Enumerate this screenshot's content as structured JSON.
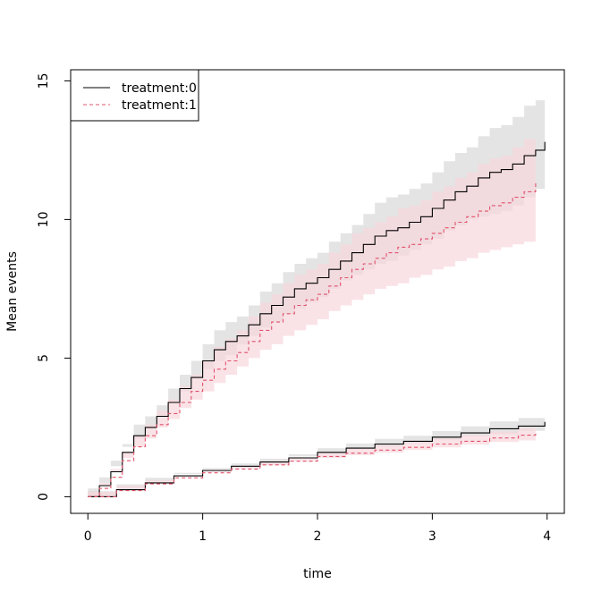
{
  "chart_data": {
    "type": "line",
    "title": "",
    "xlabel": "time",
    "ylabel": "Mean events",
    "xlim": [
      -0.15,
      4.15
    ],
    "ylim": [
      -0.6,
      15.4
    ],
    "xticks": [
      0,
      1,
      2,
      3,
      4
    ],
    "yticks": [
      0,
      5,
      10,
      15
    ],
    "grid": false,
    "legend": {
      "position": "top-left",
      "entries": [
        "treatment:0",
        "treatment:1"
      ]
    },
    "series": [
      {
        "name": "treatment:0",
        "group": "upper",
        "line_color": "#000000",
        "band_color": "#d9d9d9",
        "dash": "solid",
        "x": [
          0,
          0.1,
          0.2,
          0.3,
          0.4,
          0.5,
          0.6,
          0.7,
          0.8,
          0.9,
          1.0,
          1.1,
          1.2,
          1.3,
          1.4,
          1.5,
          1.6,
          1.7,
          1.8,
          1.9,
          2.0,
          2.1,
          2.2,
          2.3,
          2.4,
          2.5,
          2.6,
          2.7,
          2.8,
          2.9,
          3.0,
          3.1,
          3.2,
          3.3,
          3.4,
          3.5,
          3.6,
          3.7,
          3.8,
          3.9,
          3.98
        ],
        "y": [
          0,
          0.4,
          0.9,
          1.6,
          2.2,
          2.5,
          2.9,
          3.4,
          3.9,
          4.3,
          4.9,
          5.3,
          5.6,
          5.8,
          6.2,
          6.6,
          6.9,
          7.2,
          7.5,
          7.7,
          7.9,
          8.2,
          8.5,
          8.8,
          9.1,
          9.4,
          9.6,
          9.7,
          9.9,
          10.1,
          10.4,
          10.7,
          11.0,
          11.2,
          11.5,
          11.7,
          11.8,
          12.0,
          12.3,
          12.5,
          12.8
        ],
        "lower": [
          0,
          0.3,
          0.7,
          1.3,
          1.8,
          2.1,
          2.5,
          2.9,
          3.4,
          3.8,
          4.3,
          4.6,
          4.9,
          5.1,
          5.5,
          5.8,
          6.1,
          6.3,
          6.6,
          6.8,
          7.0,
          7.2,
          7.5,
          7.8,
          8.0,
          8.2,
          8.4,
          8.5,
          8.7,
          8.9,
          9.1,
          9.3,
          9.6,
          9.8,
          10.0,
          10.1,
          10.2,
          10.3,
          10.5,
          10.8,
          11.1
        ],
        "upper": [
          0,
          0.5,
          1.1,
          1.9,
          2.6,
          2.9,
          3.3,
          3.9,
          4.4,
          4.9,
          5.5,
          6.0,
          6.3,
          6.5,
          6.9,
          7.4,
          7.7,
          8.1,
          8.4,
          8.6,
          8.8,
          9.2,
          9.5,
          9.8,
          10.2,
          10.6,
          10.8,
          10.9,
          11.1,
          11.3,
          11.7,
          12.1,
          12.4,
          12.6,
          13.0,
          13.3,
          13.4,
          13.7,
          14.1,
          14.3,
          14.6
        ]
      },
      {
        "name": "treatment:1",
        "group": "upper",
        "line_color": "#df536b",
        "band_color": "#f8d7dd",
        "dash": "dashed",
        "x": [
          0,
          0.1,
          0.2,
          0.3,
          0.4,
          0.5,
          0.6,
          0.7,
          0.8,
          0.9,
          1.0,
          1.1,
          1.2,
          1.3,
          1.4,
          1.5,
          1.6,
          1.7,
          1.8,
          1.9,
          2.0,
          2.1,
          2.2,
          2.3,
          2.4,
          2.5,
          2.6,
          2.7,
          2.8,
          2.9,
          3.0,
          3.1,
          3.2,
          3.3,
          3.4,
          3.5,
          3.6,
          3.7,
          3.8,
          3.9
        ],
        "y": [
          0,
          0.3,
          0.7,
          1.3,
          1.8,
          2.2,
          2.6,
          3.0,
          3.4,
          3.8,
          4.2,
          4.6,
          4.9,
          5.2,
          5.6,
          6.0,
          6.3,
          6.6,
          6.9,
          7.1,
          7.3,
          7.6,
          7.9,
          8.2,
          8.4,
          8.6,
          8.8,
          9.0,
          9.1,
          9.3,
          9.5,
          9.7,
          9.9,
          10.1,
          10.3,
          10.5,
          10.6,
          10.8,
          11.0,
          11.4
        ],
        "lower": [
          0,
          0.2,
          0.5,
          1.0,
          1.4,
          1.8,
          2.1,
          2.5,
          2.8,
          3.2,
          3.5,
          3.8,
          4.1,
          4.4,
          4.7,
          5.0,
          5.3,
          5.5,
          5.8,
          6.0,
          6.2,
          6.4,
          6.7,
          6.9,
          7.1,
          7.3,
          7.5,
          7.6,
          7.7,
          7.9,
          8.0,
          8.2,
          8.3,
          8.5,
          8.6,
          8.8,
          8.9,
          9.0,
          9.1,
          9.2
        ],
        "upper": [
          0,
          0.4,
          0.9,
          1.6,
          2.2,
          2.6,
          3.1,
          3.5,
          4.0,
          4.4,
          4.9,
          5.4,
          5.7,
          6.0,
          6.5,
          7.0,
          7.3,
          7.7,
          8.0,
          8.2,
          8.4,
          8.8,
          9.1,
          9.5,
          9.7,
          9.9,
          10.1,
          10.4,
          10.5,
          10.7,
          11.0,
          11.2,
          11.5,
          11.7,
          12.0,
          12.2,
          12.3,
          12.6,
          12.9,
          13.1
        ]
      },
      {
        "name": "treatment:0",
        "group": "lower",
        "line_color": "#000000",
        "band_color": "#d9d9d9",
        "dash": "solid",
        "x": [
          0,
          0.25,
          0.5,
          0.75,
          1.0,
          1.25,
          1.5,
          1.75,
          2.0,
          2.25,
          2.5,
          2.75,
          3.0,
          3.25,
          3.5,
          3.75,
          3.98
        ],
        "y": [
          0,
          0.25,
          0.5,
          0.75,
          0.95,
          1.1,
          1.25,
          1.4,
          1.6,
          1.75,
          1.9,
          2.0,
          2.15,
          2.3,
          2.45,
          2.55,
          2.7
        ],
        "lower": [
          0,
          0.2,
          0.45,
          0.68,
          0.86,
          1.0,
          1.13,
          1.27,
          1.45,
          1.58,
          1.71,
          1.8,
          1.93,
          2.06,
          2.18,
          2.26,
          2.38
        ],
        "upper": [
          0,
          0.3,
          0.56,
          0.82,
          1.04,
          1.2,
          1.37,
          1.53,
          1.75,
          1.92,
          2.09,
          2.2,
          2.37,
          2.54,
          2.72,
          2.84,
          3.02
        ]
      },
      {
        "name": "treatment:1",
        "group": "lower",
        "line_color": "#df536b",
        "band_color": "#f8d7dd",
        "dash": "dashed",
        "x": [
          0,
          0.25,
          0.5,
          0.75,
          1.0,
          1.25,
          1.5,
          1.75,
          2.0,
          2.25,
          2.5,
          2.75,
          3.0,
          3.25,
          3.5,
          3.75,
          3.9
        ],
        "y": [
          0,
          0.22,
          0.46,
          0.68,
          0.86,
          1.0,
          1.15,
          1.28,
          1.45,
          1.57,
          1.68,
          1.78,
          1.9,
          2.0,
          2.12,
          2.22,
          2.3
        ],
        "lower": [
          0,
          0.17,
          0.4,
          0.6,
          0.76,
          0.89,
          1.02,
          1.14,
          1.29,
          1.4,
          1.5,
          1.59,
          1.69,
          1.78,
          1.88,
          1.97,
          2.03
        ],
        "upper": [
          0,
          0.27,
          0.52,
          0.76,
          0.96,
          1.11,
          1.28,
          1.42,
          1.61,
          1.74,
          1.86,
          1.97,
          2.11,
          2.22,
          2.36,
          2.47,
          2.57
        ]
      }
    ]
  }
}
